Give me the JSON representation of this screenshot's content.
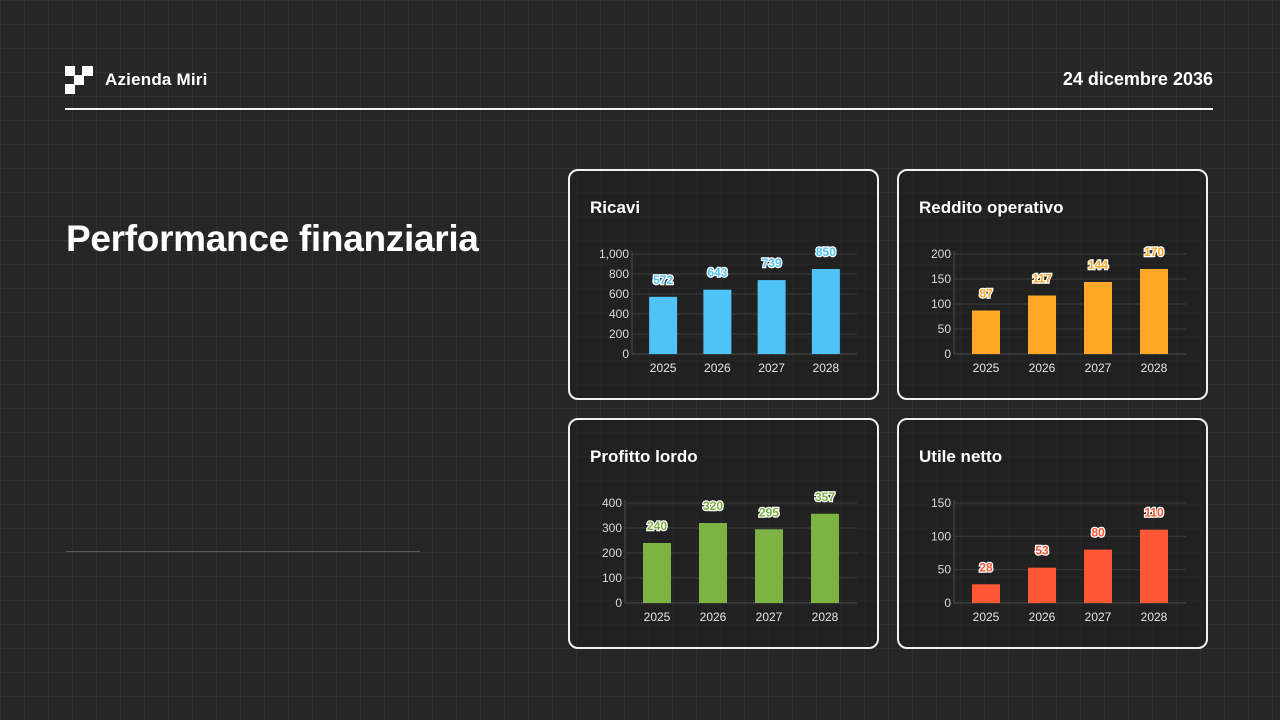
{
  "header": {
    "company": "Azienda Miri",
    "date": "24 dicembre 2036"
  },
  "page": {
    "title": "Performance finanziaria"
  },
  "chart_data": [
    {
      "type": "bar",
      "title": "Ricavi",
      "color": "#4fc3f7",
      "categories": [
        "2025",
        "2026",
        "2027",
        "2028"
      ],
      "values": [
        572,
        643,
        739,
        850
      ],
      "ylim": [
        0,
        1000
      ],
      "yticks": [
        0,
        200,
        400,
        600,
        800,
        1000
      ],
      "ytick_labels": [
        "0",
        "200",
        "400",
        "600",
        "800",
        "1,000"
      ]
    },
    {
      "type": "bar",
      "title": "Reddito operativo",
      "color": "#ffa726",
      "categories": [
        "2025",
        "2026",
        "2027",
        "2028"
      ],
      "values": [
        87,
        117,
        144,
        170
      ],
      "ylim": [
        0,
        200
      ],
      "yticks": [
        0,
        50,
        100,
        150,
        200
      ],
      "ytick_labels": [
        "0",
        "50",
        "100",
        "150",
        "200"
      ]
    },
    {
      "type": "bar",
      "title": "Profitto lordo",
      "color": "#7cb342",
      "categories": [
        "2025",
        "2026",
        "2027",
        "2028"
      ],
      "values": [
        240,
        320,
        295,
        357
      ],
      "ylim": [
        0,
        400
      ],
      "yticks": [
        0,
        100,
        200,
        300,
        400
      ],
      "ytick_labels": [
        "0",
        "100",
        "200",
        "300",
        "400"
      ]
    },
    {
      "type": "bar",
      "title": "Utile netto",
      "color": "#ff5733",
      "categories": [
        "2025",
        "2026",
        "2027",
        "2028"
      ],
      "values": [
        28,
        53,
        80,
        110
      ],
      "ylim": [
        0,
        150
      ],
      "yticks": [
        0,
        50,
        100,
        150
      ],
      "ytick_labels": [
        "0",
        "50",
        "100",
        "150"
      ]
    }
  ]
}
